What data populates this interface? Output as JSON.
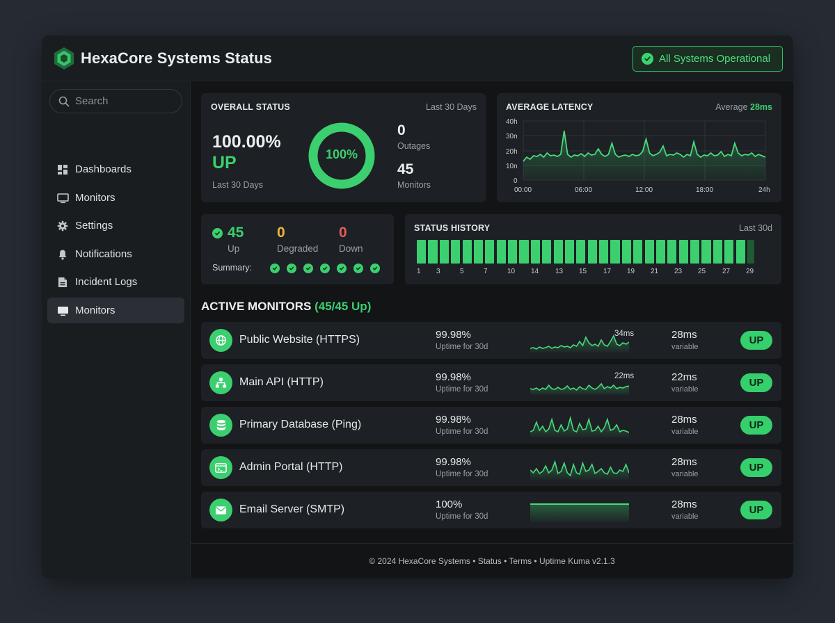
{
  "header": {
    "title": "HexaCore Systems Status",
    "status_label": "All Systems Operational",
    "logo_icon": "hexagon-logo-icon"
  },
  "sidebar": {
    "search_placeholder": "Search",
    "items": [
      {
        "label": "Dashboards",
        "icon": "dashboard-icon"
      },
      {
        "label": "Monitors",
        "icon": "monitor-icon"
      },
      {
        "label": "Settings",
        "icon": "gear-icon"
      },
      {
        "label": "Notifications",
        "icon": "bell-icon"
      },
      {
        "label": "Incident Logs",
        "icon": "document-icon"
      },
      {
        "label": "Monitors",
        "icon": "monitor-icon",
        "active": true
      }
    ]
  },
  "overall": {
    "title": "OVERALL STATUS",
    "period": "Last 30 Days",
    "percent": "100.00%",
    "state": "UP",
    "sub": "Last 30 Days",
    "donut_label": "100%",
    "donut_fraction": 1.0,
    "outages_value": "0",
    "outages_label": "Outages",
    "monitors_value": "45",
    "monitors_label": "Monitors"
  },
  "latency": {
    "title": "AVERAGE LATENCY",
    "avg_label": "Average",
    "avg_value": "28ms",
    "y_ticks": [
      "40h",
      "30n",
      "20h",
      "10n",
      "0"
    ],
    "x_ticks": [
      "00:00",
      "06:00",
      "12:00",
      "18:00",
      "24h"
    ]
  },
  "summary": {
    "up_value": "45",
    "up_label": "Up",
    "degraded_value": "0",
    "degraded_label": "Degraded",
    "down_value": "0",
    "down_label": "Down",
    "summary_label": "Summary:",
    "checks": 7
  },
  "history": {
    "title": "STATUS HISTORY",
    "period": "Last 30d",
    "day_labels": [
      "1",
      "3",
      "5",
      "7",
      "10",
      "14",
      "13",
      "15",
      "17",
      "19",
      "21",
      "23",
      "25",
      "27",
      "29"
    ],
    "bars": 30
  },
  "active": {
    "title": "ACTIVE MONITORS",
    "count": "(45/45 Up)"
  },
  "monitors": [
    {
      "name": "Public Website (HTTPS)",
      "icon": "globe-icon",
      "uptime": "99.98%",
      "uptime_sub": "Uptime for 30d",
      "spark_label": "34ms",
      "latency": "28ms",
      "latency_sub": "variable",
      "status": "UP"
    },
    {
      "name": "Main API (HTTP)",
      "icon": "network-icon",
      "uptime": "99.98%",
      "uptime_sub": "Uptime for 30d",
      "spark_label": "22ms",
      "latency": "22ms",
      "latency_sub": "variable",
      "status": "UP"
    },
    {
      "name": "Primary Database (Ping)",
      "icon": "database-icon",
      "uptime": "99.98%",
      "uptime_sub": "Uptime for 30d",
      "spark_label": "",
      "latency": "28ms",
      "latency_sub": "variable",
      "status": "UP"
    },
    {
      "name": "Admin Portal (HTTP)",
      "icon": "terminal-window-icon",
      "uptime": "99.98%",
      "uptime_sub": "Uptime for 30d",
      "spark_label": "",
      "latency": "28ms",
      "latency_sub": "variable",
      "status": "UP"
    },
    {
      "name": "Email Server (SMTP)",
      "icon": "envelope-icon",
      "uptime": "100%",
      "uptime_sub": "Uptime for 30d",
      "spark_label": "",
      "latency": "28ms",
      "latency_sub": "variable",
      "status": "UP"
    }
  ],
  "footer": {
    "text": "© 2024 HexaCore Systems • Status • Terms • Uptime Kuma v2.1.3"
  },
  "colors": {
    "accent": "#3ccf6f",
    "degraded": "#f2b53a",
    "down": "#e35d5d",
    "background": "#121416",
    "card": "#1d2024"
  }
}
